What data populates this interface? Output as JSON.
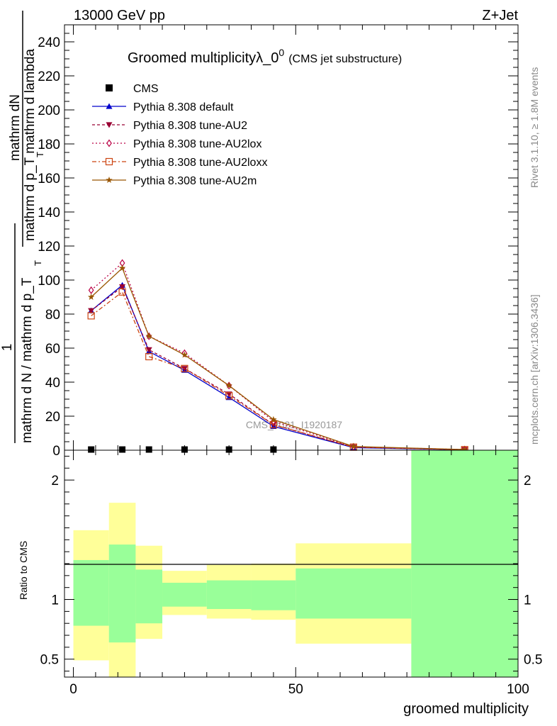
{
  "header": {
    "left": "13000 GeV pp",
    "right": "Z+Jet"
  },
  "side_labels": {
    "rivet": "Rivet 3.1.10, ≥ 1.8M events",
    "mcplots": "mcplots.cern.ch [arXiv:1306.3436]"
  },
  "watermark": "CMS_2021_I1920187",
  "chart_data": {
    "type": "line",
    "title": "Groomed multiplicityλ_0",
    "title_superscript": "0",
    "subtitle": "(CMS jet substructure)",
    "xlabel": "groomed multiplicity",
    "ylabel_top_numerator": "mathrm dN",
    "ylabel_top_denominator": "mathrm d p_T mathrm d lambda",
    "ylabel_prefactor": "1",
    "ylabel_bottom": "mathrm d N / mathrm d p_T",
    "ratio_ylabel": "Ratio to CMS",
    "xlim": [
      -2,
      100
    ],
    "ylim": [
      0,
      250
    ],
    "ratio_ylim": [
      0.35,
      2.25
    ],
    "x_ticks": [
      0,
      50,
      100
    ],
    "y_ticks": [
      0,
      20,
      40,
      60,
      80,
      100,
      120,
      140,
      160,
      180,
      200,
      220,
      240
    ],
    "ratio_ticks": [
      0.5,
      1,
      2
    ],
    "bin_edges": [
      0,
      8,
      14,
      20,
      30,
      40,
      50,
      76,
      100
    ],
    "x": [
      4,
      11,
      17,
      25,
      35,
      45,
      63,
      88
    ],
    "cms": {
      "name": "CMS",
      "values": [
        0.4,
        0.4,
        0.4,
        0.4,
        0.4,
        0.4,
        0,
        0
      ]
    },
    "series": [
      {
        "name": "Pythia 8.308 default",
        "color": "#0000cc",
        "dash": "",
        "marker": "triangle",
        "values": [
          82,
          97,
          58,
          47,
          31,
          14,
          1.5,
          0.3
        ]
      },
      {
        "name": "Pythia 8.308 tune-AU2",
        "color": "#990033",
        "dash": "4,3",
        "marker": "triangle-down",
        "values": [
          82,
          96,
          59,
          48,
          33,
          15,
          1.8,
          0.3
        ]
      },
      {
        "name": "Pythia 8.308 tune-AU2lox",
        "color": "#bb0044",
        "dash": "2,3",
        "marker": "diamond",
        "values": [
          94,
          110,
          67,
          57,
          38,
          17,
          2.0,
          0.4
        ]
      },
      {
        "name": "Pythia 8.308 tune-AU2loxx",
        "color": "#cc4411",
        "dash": "6,3,2,3",
        "marker": "square",
        "values": [
          79,
          93,
          55,
          48,
          32,
          15,
          1.8,
          0.3
        ]
      },
      {
        "name": "Pythia 8.308 tune-AU2m",
        "color": "#995500",
        "dash": "",
        "marker": "star",
        "values": [
          90,
          107,
          67,
          56,
          38,
          18,
          2.2,
          0.4
        ]
      }
    ],
    "ratio_bands": {
      "outer": [
        [
          0.49,
          1.58
        ],
        [
          0.35,
          1.81
        ],
        [
          0.67,
          1.45
        ],
        [
          0.87,
          1.24
        ],
        [
          0.84,
          1.29
        ],
        [
          0.83,
          1.3
        ],
        [
          0.63,
          1.47
        ],
        [
          0.35,
          2.25
        ]
      ],
      "inner": [
        [
          0.78,
          1.33
        ],
        [
          0.64,
          1.46
        ],
        [
          0.8,
          1.25
        ],
        [
          0.94,
          1.14
        ],
        [
          0.92,
          1.16
        ],
        [
          0.91,
          1.16
        ],
        [
          0.84,
          1.26
        ],
        [
          0.35,
          2.25
        ]
      ],
      "outer_color": "#ffff99",
      "inner_color": "#99ff99"
    }
  }
}
